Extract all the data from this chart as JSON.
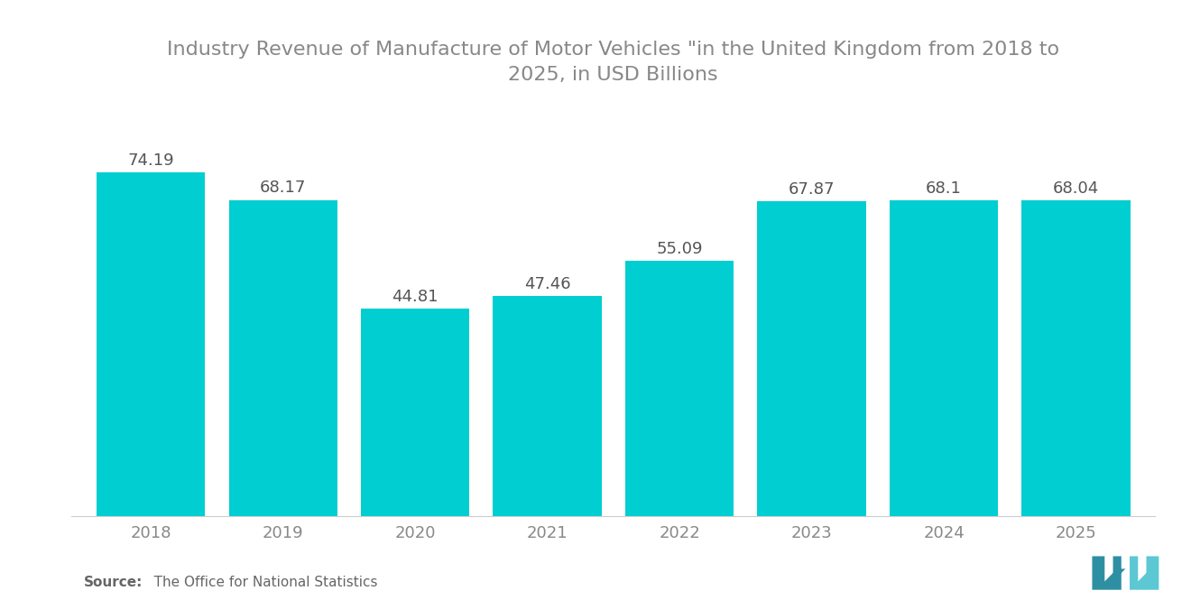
{
  "title_line1": "Industry Revenue of Manufacture of Motor Vehicles \"in the United Kingdom from 2018 to",
  "title_line2": "2025, in USD Billions",
  "years": [
    "2018",
    "2019",
    "2020",
    "2021",
    "2022",
    "2023",
    "2024",
    "2025"
  ],
  "values": [
    74.19,
    68.17,
    44.81,
    47.46,
    55.09,
    67.87,
    68.1,
    68.04
  ],
  "bar_color": "#00CED1",
  "bg_color": "#ffffff",
  "title_color": "#888888",
  "label_color": "#555555",
  "tick_color": "#888888",
  "source_label_bold": "Source:",
  "source_label_normal": "   The Office for National Statistics",
  "title_fontsize": 16,
  "label_fontsize": 13,
  "tick_fontsize": 13,
  "source_fontsize": 11,
  "bar_width": 0.82
}
